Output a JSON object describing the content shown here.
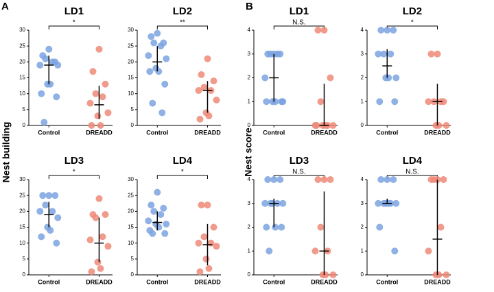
{
  "panels": [
    {
      "label": "A",
      "ylabel": "Nest building"
    },
    {
      "label": "B",
      "ylabel": "Nest score"
    }
  ],
  "chart_data": [
    {
      "type": "strip",
      "title": "LD1",
      "categories": [
        "Control",
        "DREADD"
      ],
      "ylim": [
        0,
        30
      ],
      "yticks": [
        0,
        5,
        10,
        15,
        20,
        25,
        30
      ],
      "significance": "*",
      "series": [
        {
          "color": "#7ba3e0",
          "values": [
            24,
            22,
            20,
            21,
            20,
            19,
            19,
            13,
            13,
            10,
            9,
            1
          ],
          "center": 19,
          "range": [
            13,
            22
          ]
        },
        {
          "color": "#ef8a78",
          "values": [
            24,
            17,
            13,
            10,
            9,
            7,
            4,
            3,
            0,
            0
          ],
          "center": 6.5,
          "range": [
            2,
            12.5
          ]
        }
      ]
    },
    {
      "type": "strip",
      "title": "LD2",
      "categories": [
        "Control",
        "DREADD"
      ],
      "ylim": [
        0,
        30
      ],
      "yticks": [
        0,
        5,
        10,
        15,
        20,
        25,
        30
      ],
      "significance": "**",
      "series": [
        {
          "color": "#7ba3e0",
          "values": [
            29,
            28,
            26,
            26,
            25,
            22,
            21,
            18,
            17,
            17,
            13,
            7,
            4
          ],
          "center": 20,
          "range": [
            17,
            25
          ]
        },
        {
          "color": "#ef8a78",
          "values": [
            21,
            16,
            14,
            12,
            11,
            11,
            8,
            4,
            3,
            2
          ],
          "center": 11,
          "range": [
            4,
            14
          ]
        }
      ]
    },
    {
      "type": "strip",
      "title": "LD3",
      "categories": [
        "Control",
        "DREADD"
      ],
      "ylim": [
        0,
        30
      ],
      "yticks": [
        0,
        5,
        10,
        15,
        20,
        25,
        30
      ],
      "significance": "*",
      "series": [
        {
          "color": "#7ba3e0",
          "values": [
            25,
            25,
            25,
            22,
            20,
            20,
            18,
            15,
            14,
            12,
            10
          ],
          "center": 19,
          "range": [
            15,
            23
          ]
        },
        {
          "color": "#ef8a78",
          "values": [
            24,
            19,
            19,
            18,
            12,
            11,
            9,
            4,
            2,
            1
          ],
          "center": 10,
          "range": [
            4,
            18
          ]
        }
      ]
    },
    {
      "type": "strip",
      "title": "LD4",
      "categories": [
        "Control",
        "DREADD"
      ],
      "ylim": [
        0,
        30
      ],
      "yticks": [
        0,
        5,
        10,
        15,
        20,
        25,
        30
      ],
      "significance": "*",
      "series": [
        {
          "color": "#7ba3e0",
          "values": [
            26,
            22,
            21,
            20,
            19,
            17,
            16,
            16,
            15,
            14,
            13,
            13
          ],
          "center": 16.5,
          "range": [
            14,
            20
          ]
        },
        {
          "color": "#ef8a78",
          "values": [
            22,
            22,
            15,
            12,
            10,
            10,
            9,
            5,
            2,
            1
          ],
          "center": 9.5,
          "range": [
            3,
            16
          ]
        }
      ]
    },
    {
      "type": "strip",
      "title": "LD1",
      "categories": [
        "Control",
        "DREADD"
      ],
      "ylim": [
        0,
        4
      ],
      "yticks": [
        0,
        1,
        2,
        3,
        4
      ],
      "significance": "N.S.",
      "series": [
        {
          "color": "#7ba3e0",
          "values": [
            3,
            3,
            3,
            3,
            3,
            2,
            1,
            1,
            1,
            1,
            1
          ],
          "center": 2,
          "range": [
            1,
            3
          ]
        },
        {
          "color": "#ef8a78",
          "values": [
            4,
            4,
            2,
            1,
            0,
            0,
            0,
            0,
            0,
            0
          ],
          "center": 0,
          "range": [
            0,
            1.75
          ]
        }
      ]
    },
    {
      "type": "strip",
      "title": "LD2",
      "categories": [
        "Control",
        "DREADD"
      ],
      "ylim": [
        0,
        4
      ],
      "yticks": [
        0,
        1,
        2,
        3,
        4
      ],
      "significance": "*",
      "series": [
        {
          "color": "#7ba3e0",
          "values": [
            4,
            4,
            4,
            3,
            3,
            3,
            2,
            2,
            2,
            1,
            1
          ],
          "center": 2.5,
          "range": [
            2,
            3.2
          ]
        },
        {
          "color": "#ef8a78",
          "values": [
            3,
            3,
            1,
            1,
            1,
            1,
            0,
            0,
            0
          ],
          "center": 1,
          "range": [
            0,
            1.75
          ]
        }
      ]
    },
    {
      "type": "strip",
      "title": "LD3",
      "categories": [
        "Control",
        "DREADD"
      ],
      "ylim": [
        0,
        4
      ],
      "yticks": [
        0,
        1,
        2,
        3,
        4
      ],
      "significance": "N.S.",
      "series": [
        {
          "color": "#7ba3e0",
          "values": [
            4,
            4,
            4,
            3,
            3,
            3,
            3,
            3,
            2,
            2,
            2,
            1
          ],
          "center": 3,
          "range": [
            2,
            3.2
          ]
        },
        {
          "color": "#ef8a78",
          "values": [
            4,
            4,
            4,
            2,
            1,
            1,
            0,
            0,
            0
          ],
          "center": 1,
          "range": [
            0,
            3.5
          ]
        }
      ]
    },
    {
      "type": "strip",
      "title": "LD4",
      "categories": [
        "Control",
        "DREADD"
      ],
      "ylim": [
        0,
        4
      ],
      "yticks": [
        0,
        1,
        2,
        3,
        4
      ],
      "significance": "N.S.",
      "series": [
        {
          "color": "#7ba3e0",
          "values": [
            4,
            4,
            4,
            3,
            3,
            3,
            3,
            3,
            3,
            2,
            1
          ],
          "center": 3,
          "range": [
            3,
            3.2
          ]
        },
        {
          "color": "#ef8a78",
          "values": [
            4,
            4,
            4,
            4,
            2,
            1,
            0,
            0,
            0
          ],
          "center": 1.5,
          "range": [
            0,
            4
          ]
        }
      ]
    }
  ]
}
